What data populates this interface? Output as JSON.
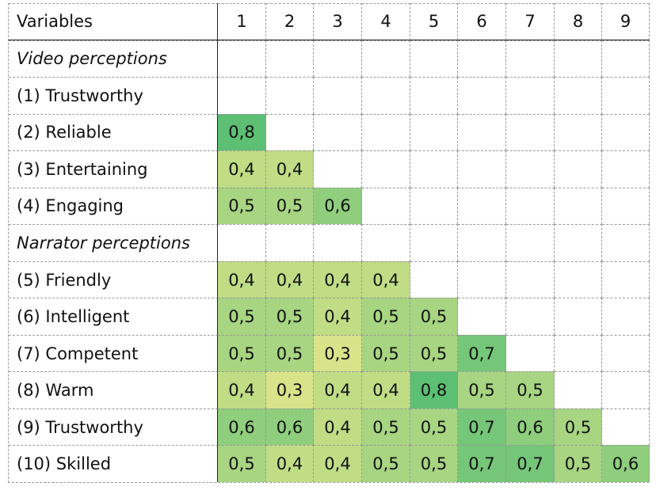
{
  "colors": {
    "scale_low": "#d9e48a",
    "scale_high": "#5cbf73",
    "header_rule": "#222222",
    "grid_line": "#9a9a9a"
  },
  "chart_data": {
    "type": "table",
    "row_header_label": "Variables",
    "columns": [
      "1",
      "2",
      "3",
      "4",
      "5",
      "6",
      "7",
      "8",
      "9"
    ],
    "rows": [
      {
        "kind": "section",
        "label": "Video perceptions",
        "values": []
      },
      {
        "kind": "variable",
        "label": "(1) Trustworthy",
        "values": []
      },
      {
        "kind": "variable",
        "label": "(2) Reliable",
        "values": [
          "0,8"
        ]
      },
      {
        "kind": "variable",
        "label": "(3) Entertaining",
        "values": [
          "0,4",
          "0,4"
        ]
      },
      {
        "kind": "variable",
        "label": "(4) Engaging",
        "values": [
          "0,5",
          "0,5",
          "0,6"
        ]
      },
      {
        "kind": "section",
        "label": "Narrator perceptions",
        "values": []
      },
      {
        "kind": "variable",
        "label": "(5) Friendly",
        "values": [
          "0,4",
          "0,4",
          "0,4",
          "0,4"
        ]
      },
      {
        "kind": "variable",
        "label": "(6) Intelligent",
        "values": [
          "0,5",
          "0,5",
          "0,4",
          "0,5",
          "0,5"
        ]
      },
      {
        "kind": "variable",
        "label": "(7) Competent",
        "values": [
          "0,5",
          "0,5",
          "0,3",
          "0,5",
          "0,5",
          "0,7"
        ]
      },
      {
        "kind": "variable",
        "label": "(8) Warm",
        "values": [
          "0,4",
          "0,3",
          "0,4",
          "0,4",
          "0,8",
          "0,5",
          "0,5"
        ]
      },
      {
        "kind": "variable",
        "label": "(9) Trustworthy",
        "values": [
          "0,6",
          "0,6",
          "0,4",
          "0,5",
          "0,5",
          "0,7",
          "0,6",
          "0,5"
        ]
      },
      {
        "kind": "variable",
        "label": "(10) Skilled",
        "values": [
          "0,5",
          "0,4",
          "0,4",
          "0,5",
          "0,5",
          "0,7",
          "0,7",
          "0,5",
          "0,6"
        ]
      }
    ],
    "color_scale": {
      "low": 0.3,
      "high": 0.8
    }
  }
}
